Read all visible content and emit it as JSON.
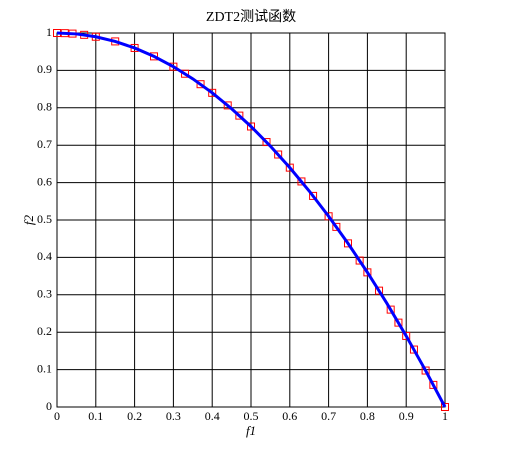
{
  "chart_data": {
    "type": "line",
    "title": "ZDT2测试函数",
    "xlabel": "f1",
    "ylabel": "f2",
    "xlim": [
      0,
      1
    ],
    "ylim": [
      0,
      1
    ],
    "xticks": [
      0,
      0.1,
      0.2,
      0.3,
      0.4,
      0.5,
      0.6,
      0.7,
      0.8,
      0.9,
      1
    ],
    "yticks": [
      0,
      0.1,
      0.2,
      0.3,
      0.4,
      0.5,
      0.6,
      0.7,
      0.8,
      0.9,
      1
    ],
    "grid": true,
    "series": [
      {
        "color": "#ff0000",
        "marker": "square",
        "line": false,
        "x": [
          0,
          0.02,
          0.04,
          0.07,
          0.1,
          0.15,
          0.2,
          0.25,
          0.3,
          0.33,
          0.37,
          0.4,
          0.44,
          0.47,
          0.5,
          0.54,
          0.57,
          0.6,
          0.63,
          0.66,
          0.7,
          0.72,
          0.75,
          0.78,
          0.8,
          0.83,
          0.86,
          0.88,
          0.9,
          0.92,
          0.95,
          0.97,
          1
        ],
        "values": [
          1,
          0.9996,
          0.9984,
          0.9951,
          0.99,
          0.9775,
          0.96,
          0.9375,
          0.91,
          0.8911,
          0.8631,
          0.84,
          0.8064,
          0.7791,
          0.75,
          0.7084,
          0.6751,
          0.64,
          0.6031,
          0.5644,
          0.51,
          0.4816,
          0.4375,
          0.3916,
          0.36,
          0.3111,
          0.2604,
          0.2256,
          0.19,
          0.1536,
          0.0975,
          0.0591,
          0
        ]
      },
      {
        "color": "#0000ff",
        "marker": "none",
        "line": true,
        "x": [
          0,
          0.05,
          0.1,
          0.15,
          0.2,
          0.25,
          0.3,
          0.35,
          0.4,
          0.45,
          0.5,
          0.55,
          0.6,
          0.65,
          0.7,
          0.75,
          0.8,
          0.85,
          0.9,
          0.95,
          1
        ],
        "values": [
          1,
          0.9975,
          0.99,
          0.9775,
          0.96,
          0.9375,
          0.91,
          0.8775,
          0.84,
          0.7975,
          0.75,
          0.6975,
          0.64,
          0.5775,
          0.51,
          0.4375,
          0.36,
          0.2775,
          0.19,
          0.0975,
          0
        ]
      }
    ]
  }
}
